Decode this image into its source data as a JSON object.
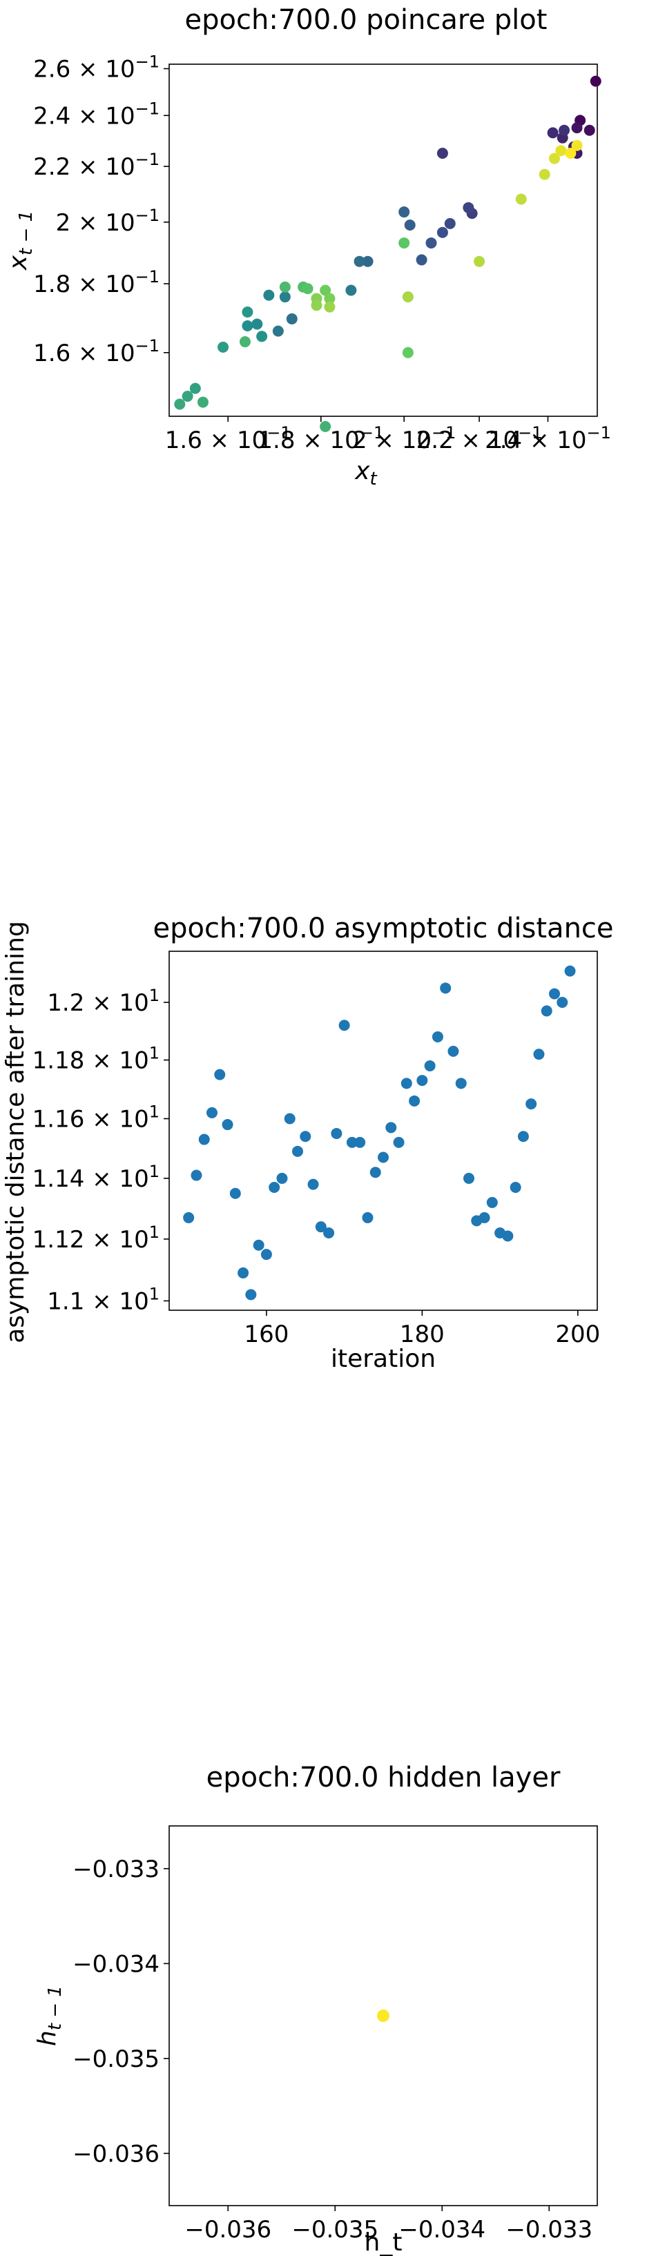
{
  "chart_data": [
    {
      "type": "scatter",
      "title": "epoch:700.0 poincare plot",
      "xlabel": "x_t",
      "ylabel": "x_{t-1}",
      "xscale": "log",
      "yscale": "log",
      "xlim": [
        0.1485,
        0.2555
      ],
      "ylim": [
        0.1435,
        0.262
      ],
      "xticks": [
        {
          "value": 0.16,
          "label": "1.6 × 10^-1"
        },
        {
          "value": 0.18,
          "label": "1.8 × 10^-1"
        },
        {
          "value": 0.2,
          "label": "2 × 10^-1"
        },
        {
          "value": 0.22,
          "label": "2.2 × 10^-1"
        },
        {
          "value": 0.24,
          "label": "2.4 × 10^-1"
        }
      ],
      "yticks": [
        {
          "value": 0.16,
          "label": "1.6 × 10^-1"
        },
        {
          "value": 0.18,
          "label": "1.8 × 10^-1"
        },
        {
          "value": 0.2,
          "label": "2 × 10^-1"
        },
        {
          "value": 0.22,
          "label": "2.2 × 10^-1"
        },
        {
          "value": 0.24,
          "label": "2.4 × 10^-1"
        },
        {
          "value": 0.26,
          "label": "2.6 × 10^-1"
        }
      ],
      "colormap": "viridis",
      "color_values": "point index order (first = dark purple, last = yellow)",
      "points": [
        {
          "x": 0.255,
          "y": 0.2545
        },
        {
          "x": 0.25,
          "y": 0.238
        },
        {
          "x": 0.253,
          "y": 0.234
        },
        {
          "x": 0.249,
          "y": 0.235
        },
        {
          "x": 0.249,
          "y": 0.225
        },
        {
          "x": 0.248,
          "y": 0.2275
        },
        {
          "x": 0.2445,
          "y": 0.231
        },
        {
          "x": 0.2415,
          "y": 0.233
        },
        {
          "x": 0.245,
          "y": 0.234
        },
        {
          "x": 0.21,
          "y": 0.225
        },
        {
          "x": 0.218,
          "y": 0.203
        },
        {
          "x": 0.217,
          "y": 0.205
        },
        {
          "x": 0.212,
          "y": 0.1995
        },
        {
          "x": 0.21,
          "y": 0.1965
        },
        {
          "x": 0.207,
          "y": 0.193
        },
        {
          "x": 0.2045,
          "y": 0.1875
        },
        {
          "x": 0.2015,
          "y": 0.199
        },
        {
          "x": 0.2,
          "y": 0.2035
        },
        {
          "x": 0.191,
          "y": 0.187
        },
        {
          "x": 0.189,
          "y": 0.187
        },
        {
          "x": 0.1735,
          "y": 0.1695
        },
        {
          "x": 0.1705,
          "y": 0.166
        },
        {
          "x": 0.187,
          "y": 0.178
        },
        {
          "x": 0.172,
          "y": 0.176
        },
        {
          "x": 0.1685,
          "y": 0.1765
        },
        {
          "x": 0.166,
          "y": 0.168
        },
        {
          "x": 0.164,
          "y": 0.1675
        },
        {
          "x": 0.167,
          "y": 0.1645
        },
        {
          "x": 0.164,
          "y": 0.1715
        },
        {
          "x": 0.159,
          "y": 0.1615
        },
        {
          "x": 0.1535,
          "y": 0.1505
        },
        {
          "x": 0.152,
          "y": 0.1485
        },
        {
          "x": 0.1505,
          "y": 0.1465
        },
        {
          "x": 0.155,
          "y": 0.147
        },
        {
          "x": 0.181,
          "y": 0.141
        },
        {
          "x": 0.1635,
          "y": 0.163
        },
        {
          "x": 0.172,
          "y": 0.179
        },
        {
          "x": 0.176,
          "y": 0.179
        },
        {
          "x": 0.177,
          "y": 0.1785
        },
        {
          "x": 0.2,
          "y": 0.193
        },
        {
          "x": 0.201,
          "y": 0.16
        },
        {
          "x": 0.181,
          "y": 0.178
        },
        {
          "x": 0.182,
          "y": 0.1755
        },
        {
          "x": 0.179,
          "y": 0.1755
        },
        {
          "x": 0.179,
          "y": 0.1735
        },
        {
          "x": 0.182,
          "y": 0.173
        },
        {
          "x": 0.201,
          "y": 0.176
        },
        {
          "x": 0.22,
          "y": 0.187
        },
        {
          "x": 0.232,
          "y": 0.208
        },
        {
          "x": 0.239,
          "y": 0.217
        },
        {
          "x": 0.242,
          "y": 0.223
        },
        {
          "x": 0.244,
          "y": 0.226
        },
        {
          "x": 0.249,
          "y": 0.228
        },
        {
          "x": 0.247,
          "y": 0.225
        }
      ]
    },
    {
      "type": "scatter",
      "title": "epoch:700.0 asymptotic distance",
      "xlabel": "iteration",
      "ylabel": "asymptotic distance after training",
      "yscale": "log",
      "xlim": [
        147.5,
        202.5
      ],
      "ylim": [
        10.97,
        12.18
      ],
      "xticks": [
        {
          "value": 160,
          "label": "160"
        },
        {
          "value": 180,
          "label": "180"
        },
        {
          "value": 200,
          "label": "200"
        }
      ],
      "yticks": [
        {
          "value": 11.0,
          "label": "1.1 × 10^1"
        },
        {
          "value": 11.2,
          "label": "1.12 × 10^1"
        },
        {
          "value": 11.4,
          "label": "1.14 × 10^1"
        },
        {
          "value": 11.6,
          "label": "1.16 × 10^1"
        },
        {
          "value": 11.8,
          "label": "1.18 × 10^1"
        },
        {
          "value": 12.0,
          "label": "1.2 × 10^1"
        }
      ],
      "color": "#1f77b4",
      "x": [
        150,
        151,
        152,
        153,
        154,
        155,
        156,
        157,
        158,
        159,
        160,
        161,
        162,
        163,
        164,
        165,
        166,
        167,
        168,
        169,
        170,
        171,
        172,
        173,
        174,
        175,
        176,
        177,
        178,
        179,
        180,
        181,
        182,
        183,
        184,
        185,
        186,
        187,
        188,
        189,
        190,
        191,
        192,
        193,
        194,
        195,
        196,
        197,
        198,
        199
      ],
      "y": [
        11.27,
        11.41,
        11.53,
        11.62,
        11.75,
        11.58,
        11.35,
        11.09,
        11.02,
        11.18,
        11.15,
        11.37,
        11.4,
        11.6,
        11.49,
        11.54,
        11.38,
        11.24,
        11.22,
        11.55,
        11.92,
        11.52,
        11.52,
        11.27,
        11.42,
        11.47,
        11.57,
        11.52,
        11.72,
        11.66,
        11.73,
        11.78,
        11.88,
        12.05,
        11.83,
        11.72,
        11.4,
        11.26,
        11.27,
        11.32,
        11.22,
        11.21,
        11.37,
        11.54,
        11.65,
        11.82,
        11.97,
        12.03,
        12.0,
        12.11
      ]
    },
    {
      "type": "scatter",
      "title": "epoch:700.0 hidden layer",
      "xlabel": "h_t",
      "ylabel": "h_{t-1}",
      "xlim": [
        -0.03655,
        -0.03255
      ],
      "ylim": [
        -0.03655,
        -0.03255
      ],
      "xticks": [
        {
          "value": -0.036,
          "label": "−0.036"
        },
        {
          "value": -0.035,
          "label": "−0.035"
        },
        {
          "value": -0.034,
          "label": "−0.034"
        },
        {
          "value": -0.033,
          "label": "−0.033"
        }
      ],
      "yticks": [
        {
          "value": -0.033,
          "label": "−0.033"
        },
        {
          "value": -0.034,
          "label": "−0.034"
        },
        {
          "value": -0.035,
          "label": "−0.035"
        },
        {
          "value": -0.036,
          "label": "−0.036"
        }
      ],
      "color": "#fde725",
      "points": [
        {
          "x": -0.03455,
          "y": -0.03455
        }
      ]
    }
  ]
}
